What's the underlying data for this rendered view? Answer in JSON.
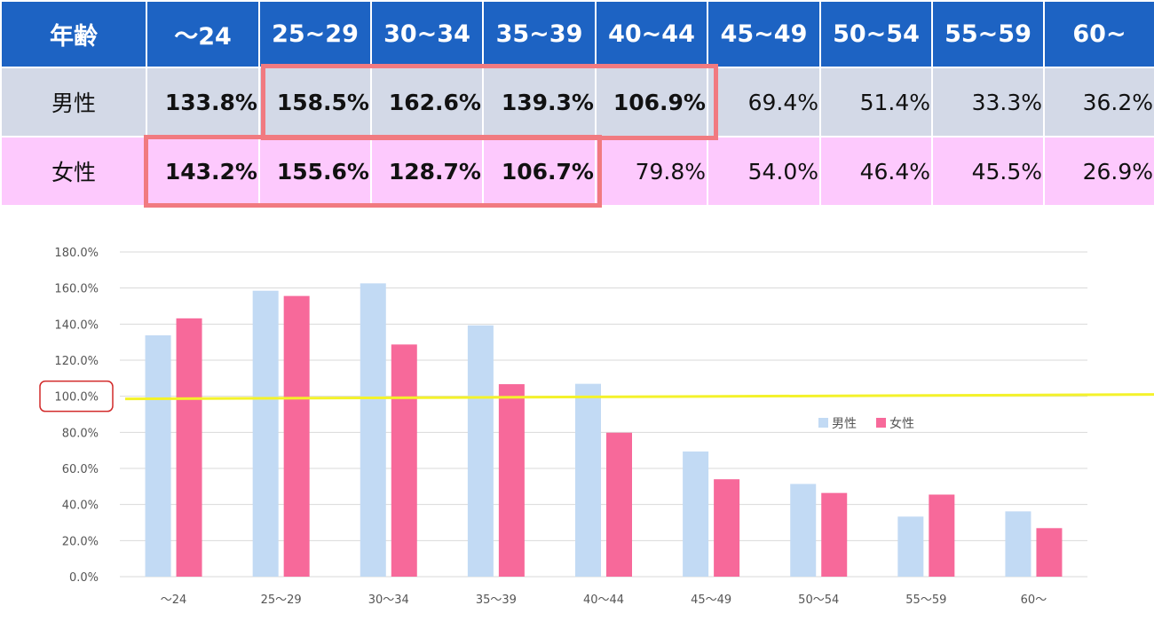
{
  "table": {
    "header": [
      "年齢",
      "～24",
      "25~29",
      "30~34",
      "35~39",
      "40~44",
      "45~49",
      "50~54",
      "55~59",
      "60~"
    ],
    "rows": [
      {
        "label": "男性",
        "values": [
          "133.8%",
          "158.5%",
          "162.6%",
          "139.3%",
          "106.9%",
          "69.4%",
          "51.4%",
          "33.3%",
          "36.2%"
        ]
      },
      {
        "label": "女性",
        "values": [
          "143.2%",
          "155.6%",
          "128.7%",
          "106.7%",
          "79.8%",
          "54.0%",
          "46.4%",
          "45.5%",
          "26.9%"
        ]
      }
    ]
  },
  "chart_data": {
    "type": "bar",
    "categories": [
      "～24",
      "25～29",
      "30～34",
      "35～39",
      "40～44",
      "45～49",
      "50～54",
      "55～59",
      "60～"
    ],
    "series": [
      {
        "name": "男性",
        "color": "#c2daf4",
        "values": [
          133.8,
          158.5,
          162.6,
          139.3,
          106.9,
          69.4,
          51.4,
          33.3,
          36.2
        ]
      },
      {
        "name": "女性",
        "color": "#f7699a",
        "values": [
          143.2,
          155.6,
          128.7,
          106.7,
          79.8,
          54.0,
          46.4,
          45.5,
          26.9
        ]
      }
    ],
    "ylim": [
      0,
      180
    ],
    "yticks": [
      "0.0%",
      "20.0%",
      "40.0%",
      "60.0%",
      "80.0%",
      "100.0%",
      "120.0%",
      "140.0%",
      "160.0%",
      "180.0%"
    ],
    "grid": true,
    "legend_position": "right",
    "reference_line": {
      "value": 100,
      "color": "#f4f22a"
    },
    "highlighted_tick": "100.0%",
    "highlight_color": "#d22a2a"
  },
  "highlight_color": "#f17a80"
}
